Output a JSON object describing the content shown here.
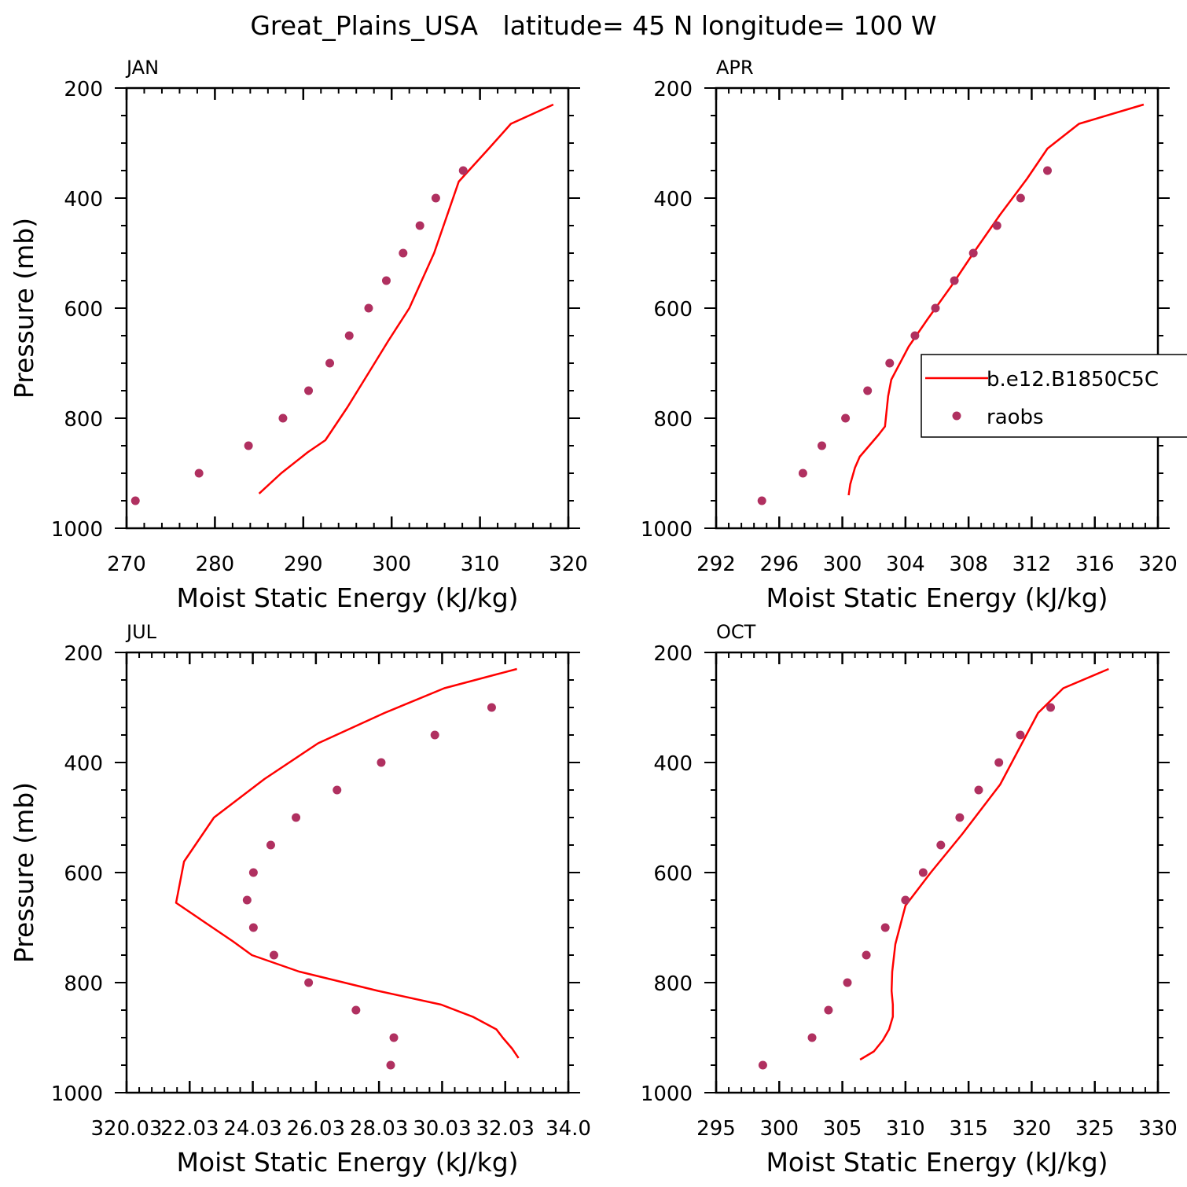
{
  "page_title": "Great_Plains_USA   latitude= 45 N longitude= 100 W",
  "colors": {
    "model": "#ff0000",
    "obs": "#b03060"
  },
  "chart_data": [
    {
      "type": "line",
      "title": "JAN",
      "xlabel": "Moist Static Energy (kJ/kg)",
      "ylabel": "Pressure (mb)",
      "xlim": [
        270,
        320
      ],
      "ylim": [
        1000,
        200
      ],
      "xticks": [
        270,
        280,
        290,
        300,
        310,
        320
      ],
      "xtick_labels": [
        "270",
        "280",
        "290",
        "300",
        "310",
        "320"
      ],
      "yticks": [
        200,
        400,
        600,
        800,
        1000
      ],
      "ytick_labels": [
        "200",
        "400",
        "600",
        "800",
        "1000"
      ],
      "series": [
        {
          "kind": "line",
          "x": [
            285.0,
            287.5,
            290.5,
            292.5,
            295.0,
            297.3,
            299.6,
            302.0,
            304.8,
            307.6,
            311.0,
            313.5,
            318.3
          ],
          "y": [
            937,
            900,
            862,
            840,
            780,
            720,
            660,
            600,
            500,
            370,
            310,
            265,
            230
          ]
        },
        {
          "name": "raobs",
          "kind": "points",
          "x": [
            271.0,
            278.2,
            283.8,
            287.7,
            290.6,
            293.0,
            295.2,
            297.4,
            299.4,
            301.3,
            303.2,
            305.0,
            308.1
          ],
          "y": [
            950,
            900,
            850,
            800,
            750,
            700,
            650,
            600,
            550,
            500,
            450,
            400,
            350
          ]
        }
      ]
    },
    {
      "type": "line",
      "title": "APR",
      "xlabel": "Moist Static Energy (kJ/kg)",
      "ylabel": "",
      "xlim": [
        292,
        320
      ],
      "ylim": [
        1000,
        200
      ],
      "xticks": [
        292,
        296,
        300,
        304,
        308,
        312,
        316,
        320
      ],
      "xtick_labels": [
        "292",
        "296",
        "300",
        "304",
        "308",
        "312",
        "316",
        "320"
      ],
      "yticks": [
        200,
        400,
        600,
        800,
        1000
      ],
      "ytick_labels": [
        "200",
        "400",
        "600",
        "800",
        "1000"
      ],
      "legend": {
        "placement": "right",
        "entries": [
          {
            "label": "b.e12.B1850C5C",
            "kind": "line"
          },
          {
            "label": "raobs",
            "kind": "points"
          }
        ]
      },
      "series": [
        {
          "name": "b.e12.B1850C5C",
          "kind": "line",
          "x": [
            300.4,
            300.5,
            300.8,
            301.1,
            301.7,
            302.3,
            302.7,
            302.9,
            303.1,
            304.2,
            305.4,
            306.9,
            308.3,
            310.0,
            311.7,
            313.0,
            315.0,
            319.1
          ],
          "y": [
            940,
            920,
            890,
            870,
            850,
            830,
            815,
            760,
            730,
            670,
            620,
            560,
            500,
            430,
            365,
            310,
            265,
            230
          ]
        },
        {
          "name": "raobs",
          "kind": "points",
          "x": [
            294.9,
            297.5,
            298.7,
            300.2,
            301.6,
            303.0,
            304.6,
            305.9,
            307.1,
            308.3,
            309.8,
            311.3,
            313.0
          ],
          "y": [
            950,
            900,
            850,
            800,
            750,
            700,
            650,
            600,
            550,
            500,
            450,
            400,
            350
          ]
        }
      ]
    },
    {
      "type": "line",
      "title": "JUL",
      "xlabel": "Moist Static Energy (kJ/kg)",
      "ylabel": "Pressure (mb)",
      "xlim": [
        320.03,
        334.03
      ],
      "ylim": [
        1000,
        200
      ],
      "xticks": [
        320.03,
        322.03,
        324.03,
        326.03,
        328.03,
        330.03,
        332.03,
        334.03
      ],
      "xtick_labels": [
        "320.03",
        "22.03",
        "24.03",
        "26.03",
        "28.03",
        "30.03",
        "32.03",
        "34.0"
      ],
      "yticks": [
        200,
        400,
        600,
        800,
        1000
      ],
      "ytick_labels": [
        "200",
        "400",
        "600",
        "800",
        "1000"
      ],
      "series": [
        {
          "kind": "line",
          "x": [
            332.45,
            332.25,
            331.95,
            331.75,
            331.0,
            330.0,
            328.0,
            325.5,
            324.0,
            323.4,
            321.6,
            321.85,
            322.8,
            324.4,
            326.1,
            328.2,
            330.1,
            332.4
          ],
          "y": [
            937,
            920,
            900,
            885,
            862,
            840,
            815,
            780,
            750,
            725,
            655,
            580,
            500,
            430,
            365,
            310,
            265,
            230
          ]
        },
        {
          "name": "raobs",
          "kind": "points",
          "x": [
            328.4,
            328.5,
            327.3,
            325.8,
            324.7,
            324.05,
            323.85,
            324.05,
            324.6,
            325.4,
            326.7,
            328.1,
            329.8,
            331.6
          ],
          "y": [
            950,
            900,
            850,
            800,
            750,
            700,
            650,
            600,
            550,
            500,
            450,
            400,
            350,
            300
          ]
        }
      ]
    },
    {
      "type": "line",
      "title": "OCT",
      "xlabel": "Moist Static Energy (kJ/kg)",
      "ylabel": "",
      "xlim": [
        295,
        330
      ],
      "ylim": [
        1000,
        200
      ],
      "xticks": [
        295,
        300,
        305,
        310,
        315,
        320,
        325,
        330
      ],
      "xtick_labels": [
        "295",
        "300",
        "305",
        "310",
        "315",
        "320",
        "325",
        "330"
      ],
      "yticks": [
        200,
        400,
        600,
        800,
        1000
      ],
      "ytick_labels": [
        "200",
        "400",
        "600",
        "800",
        "1000"
      ],
      "series": [
        {
          "kind": "line",
          "x": [
            306.4,
            307.5,
            308.2,
            308.7,
            309.0,
            309.0,
            308.9,
            308.95,
            309.2,
            310.0,
            312.0,
            314.5,
            317.5,
            320.5,
            322.5,
            326.1
          ],
          "y": [
            940,
            925,
            905,
            885,
            862,
            840,
            815,
            780,
            730,
            660,
            600,
            530,
            440,
            310,
            265,
            230
          ]
        },
        {
          "name": "raobs",
          "kind": "points",
          "x": [
            298.7,
            302.6,
            303.9,
            305.4,
            306.9,
            308.4,
            310.0,
            311.4,
            312.8,
            314.3,
            315.8,
            317.4,
            319.1,
            321.5
          ],
          "y": [
            950,
            900,
            850,
            800,
            750,
            700,
            650,
            600,
            550,
            500,
            450,
            400,
            350,
            300
          ]
        }
      ]
    }
  ]
}
